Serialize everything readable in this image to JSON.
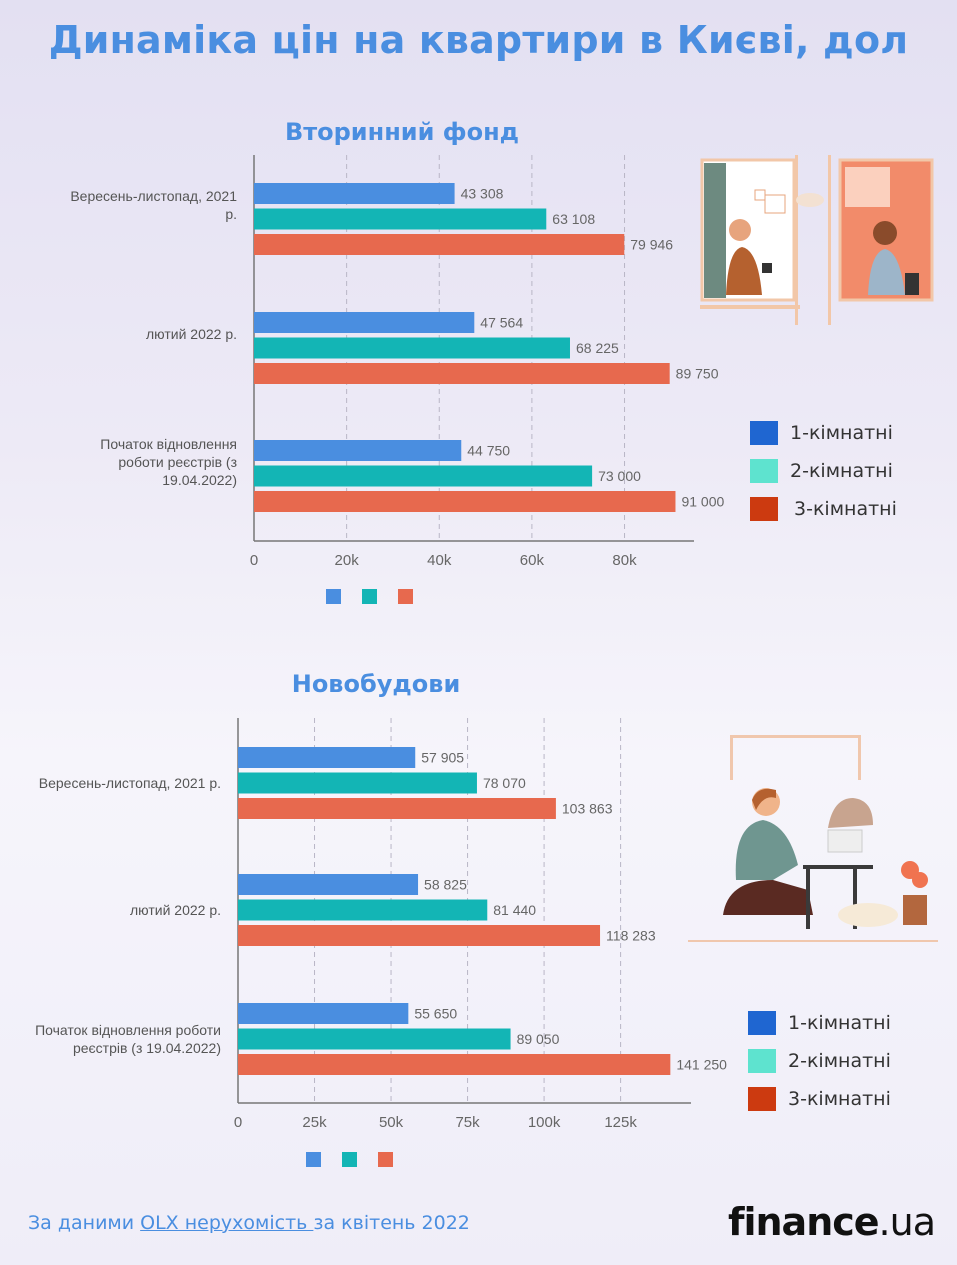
{
  "page": {
    "title": "Динаміка цін на квартири в Києві, дол"
  },
  "colors": {
    "one_room": "#4a8ee0",
    "two_room": "#13b5b5",
    "three_room": "#e7694e",
    "legend_one": "#1f66d1",
    "legend_two": "#5ee3cf",
    "legend_three": "#cc3a10",
    "title": "#4a8ee0"
  },
  "chart_data": [
    {
      "type": "bar",
      "orientation": "horizontal",
      "title": "Вторинний фонд",
      "categories": [
        "Вересень-листопад, 2021 р.",
        "лютий 2022 р.",
        "Початок відновлення роботи реєстрів (з 19.04.2022)"
      ],
      "category_lines": [
        [
          "Вересень-листопад, 2021",
          "р."
        ],
        [
          "лютий 2022 р."
        ],
        [
          "Початок відновлення",
          "роботи реєстрів (з",
          "19.04.2022)"
        ]
      ],
      "series": [
        {
          "name": "1-кімнатні",
          "values": [
            43308,
            47564,
            44750
          ],
          "labels": [
            "43 308",
            "47 564",
            "44 750"
          ]
        },
        {
          "name": "2-кімнатні",
          "values": [
            63108,
            68225,
            73000
          ],
          "labels": [
            "63 108",
            "68 225",
            "73 000"
          ]
        },
        {
          "name": "3-кімнатні",
          "values": [
            79946,
            89750,
            91000
          ],
          "labels": [
            "79 946",
            "89 750",
            "91 000"
          ]
        }
      ],
      "xticks": [
        0,
        20000,
        40000,
        60000,
        80000
      ],
      "xtick_labels": [
        "0",
        "20k",
        "40k",
        "60k",
        "80k"
      ],
      "xlim": [
        0,
        95000
      ],
      "grid": "vertical dashed",
      "legend": [
        "1-кімнатні",
        "2-кімнатні",
        "3-кімнатні"
      ],
      "legend_position": "right"
    },
    {
      "type": "bar",
      "orientation": "horizontal",
      "title": "Новобудови",
      "categories": [
        "Вересень-листопад, 2021 р.",
        "лютий 2022 р.",
        "Початок відновлення роботи реєстрів (з 19.04.2022)"
      ],
      "category_lines": [
        [
          "Вересень-листопад, 2021 р."
        ],
        [
          "лютий 2022 р."
        ],
        [
          "Початок відновлення роботи",
          "реєстрів (з 19.04.2022)"
        ]
      ],
      "series": [
        {
          "name": "1-кімнатні",
          "values": [
            57905,
            58825,
            55650
          ],
          "labels": [
            "57 905",
            "58 825",
            "55 650"
          ]
        },
        {
          "name": "2-кімнатні",
          "values": [
            78070,
            81440,
            89050
          ],
          "labels": [
            "78 070",
            "81 440",
            "89 050"
          ]
        },
        {
          "name": "3-кімнатні",
          "values": [
            103863,
            118283,
            141250
          ],
          "labels": [
            "103 863",
            "118 283",
            "141 250"
          ]
        }
      ],
      "xticks": [
        0,
        25000,
        50000,
        75000,
        100000,
        125000
      ],
      "xtick_labels": [
        "0",
        "25k",
        "50k",
        "75k",
        "100k",
        "125k"
      ],
      "xlim": [
        0,
        148000
      ],
      "grid": "vertical dashed",
      "legend": [
        "1-кімнатні",
        "2-кімнатні",
        "3-кімнатні"
      ],
      "legend_position": "right"
    }
  ],
  "footer": {
    "source_prefix": "За даними ",
    "source_link": "OLX нерухомість ",
    "source_suffix": " за квітень 2022",
    "brand_main": "finance",
    "brand_suffix": ".ua"
  }
}
